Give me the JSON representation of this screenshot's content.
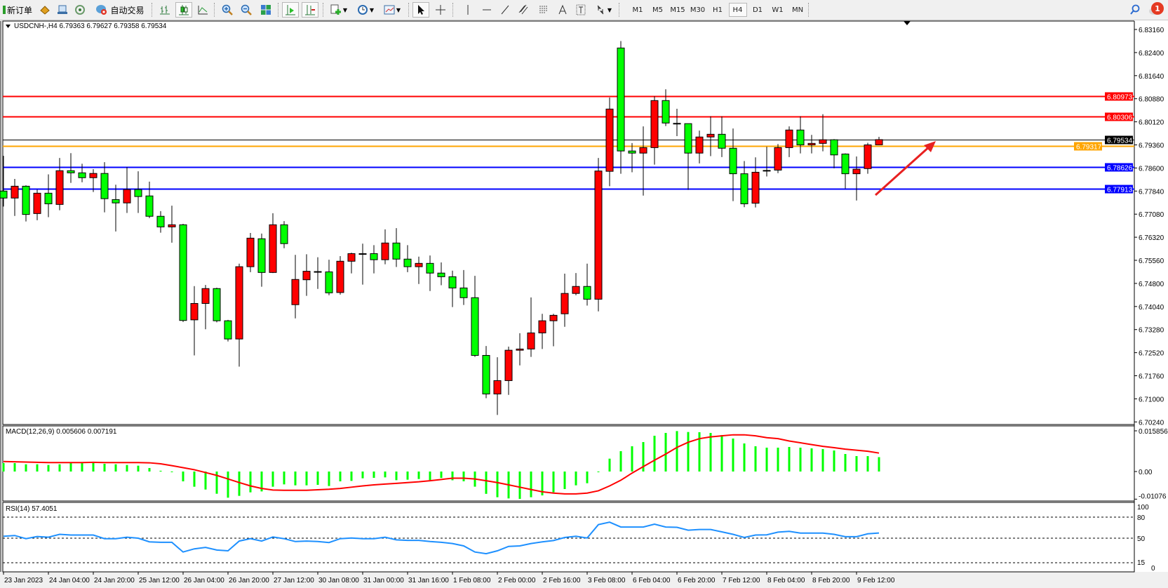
{
  "toolbar": {
    "new_order_label": "新订单",
    "auto_trading_label": "自动交易",
    "timeframes": [
      "M1",
      "M5",
      "M15",
      "M30",
      "H1",
      "H4",
      "D1",
      "W1",
      "MN"
    ],
    "active_timeframe": "H4",
    "notification_count": "1",
    "icons": [
      "new-order-icon",
      "metaeditor-icon",
      "terminal-icon",
      "signals-icon",
      "auto-trading-icon",
      "bar-chart-icon",
      "candlestick-icon",
      "line-chart-icon",
      "zoom-in-icon",
      "zoom-out-icon",
      "tile-windows-icon",
      "auto-scroll-icon",
      "chart-shift-icon",
      "new-chart-icon",
      "periods-icon",
      "templates-icon",
      "cursor-icon",
      "crosshair-icon",
      "vertical-line-icon",
      "horizontal-line-icon",
      "trendline-icon",
      "equidistant-channel-icon",
      "fibonacci-icon",
      "text-icon",
      "text-label-icon",
      "arrows-icon",
      "search-icon",
      "notification-icon"
    ]
  },
  "chart_data": {
    "type": "candlestick",
    "title": "USDCNH-,H4  6.79363 6.79627 6.79358 6.79534",
    "symbol": "USDCNH-",
    "timeframe": "H4",
    "header_ohlc": {
      "open": "6.79363",
      "high": "6.79627",
      "low": "6.79358",
      "close": "6.79534"
    },
    "ylim": [
      6.7024,
      6.8316
    ],
    "price_ticks": [
      "6.83160",
      "6.82400",
      "6.81640",
      "6.80880",
      "6.80120",
      "6.79360",
      "6.78600",
      "6.77840",
      "6.77080",
      "6.76320",
      "6.75560",
      "6.74800",
      "6.74040",
      "6.73280",
      "6.72520",
      "6.71760",
      "6.71000",
      "6.70240"
    ],
    "time_labels": [
      "23 Jan 2023",
      "24 Jan 04:00",
      "24 Jan 20:00",
      "25 Jan 12:00",
      "26 Jan 04:00",
      "26 Jan 20:00",
      "27 Jan 12:00",
      "30 Jan 08:00",
      "31 Jan 00:00",
      "31 Jan 16:00",
      "1 Feb 08:00",
      "2 Feb 00:00",
      "2 Feb 16:00",
      "3 Feb 08:00",
      "6 Feb 04:00",
      "6 Feb 20:00",
      "7 Feb 12:00",
      "8 Feb 04:00",
      "8 Feb 20:00",
      "9 Feb 12:00"
    ],
    "time_label_every_n_bars": 4,
    "up_color": "#ff0000",
    "down_color": "#00ff00",
    "ohlc": [
      [
        6.7784,
        6.79,
        6.7733,
        6.7761
      ],
      [
        6.7761,
        6.7824,
        6.7702,
        6.78
      ],
      [
        6.78,
        6.7803,
        6.7684,
        6.7707
      ],
      [
        6.771,
        6.7789,
        6.7688,
        6.7777
      ],
      [
        6.7777,
        6.7839,
        6.7698,
        6.7742
      ],
      [
        6.774,
        6.7893,
        6.7721,
        6.7851
      ],
      [
        6.7851,
        6.7909,
        6.7811,
        6.7844
      ],
      [
        6.7844,
        6.7874,
        6.7813,
        6.7828
      ],
      [
        6.7828,
        6.7856,
        6.7781,
        6.7842
      ],
      [
        6.7842,
        6.7879,
        6.7714,
        6.7759
      ],
      [
        6.7756,
        6.7805,
        6.7651,
        6.7745
      ],
      [
        6.7745,
        6.7863,
        6.7712,
        6.7789
      ],
      [
        6.7789,
        6.7849,
        6.7712,
        6.7766
      ],
      [
        6.7768,
        6.7815,
        6.7695,
        6.7701
      ],
      [
        6.7701,
        6.7718,
        6.7647,
        6.7666
      ],
      [
        6.7666,
        6.7736,
        6.7614,
        6.7673
      ],
      [
        6.7673,
        6.7676,
        6.7353,
        6.7358
      ],
      [
        6.736,
        6.7471,
        6.7243,
        6.7414
      ],
      [
        6.7414,
        6.7475,
        6.7329,
        6.7463
      ],
      [
        6.7463,
        6.7466,
        6.7352,
        6.7357
      ],
      [
        6.7357,
        6.736,
        6.7289,
        6.7297
      ],
      [
        6.7297,
        6.7545,
        6.7206,
        6.7535
      ],
      [
        6.7535,
        6.7646,
        6.7517,
        6.7629
      ],
      [
        6.7627,
        6.7644,
        6.7469,
        6.7516
      ],
      [
        6.7516,
        6.7711,
        6.7514,
        6.7673
      ],
      [
        6.7673,
        6.7685,
        6.7596,
        6.7611
      ],
      [
        6.741,
        6.7574,
        6.7365,
        6.7493
      ],
      [
        6.7492,
        6.7576,
        6.7439,
        6.752
      ],
      [
        6.7519,
        6.7566,
        6.7462,
        6.7519
      ],
      [
        6.7518,
        6.7558,
        6.7441,
        6.7449
      ],
      [
        6.745,
        6.757,
        6.7443,
        6.7553
      ],
      [
        6.7553,
        6.7581,
        6.7513,
        6.7578
      ],
      [
        6.7578,
        6.7611,
        6.7476,
        6.7578
      ],
      [
        6.7578,
        6.7606,
        6.7513,
        6.7558
      ],
      [
        6.7558,
        6.7658,
        6.7543,
        6.7613
      ],
      [
        6.7613,
        6.7662,
        6.7534,
        6.756
      ],
      [
        6.756,
        6.7606,
        6.7517,
        6.7535
      ],
      [
        6.7535,
        6.7568,
        6.7478,
        6.7546
      ],
      [
        6.7546,
        6.7572,
        6.7455,
        6.7514
      ],
      [
        6.7514,
        6.7549,
        6.7474,
        6.7502
      ],
      [
        6.7502,
        6.7522,
        6.7402,
        6.7465
      ],
      [
        6.7465,
        6.7524,
        6.7409,
        6.7433
      ],
      [
        6.7433,
        6.7505,
        6.7238,
        6.7243
      ],
      [
        6.7243,
        6.7274,
        6.7102,
        6.7116
      ],
      [
        6.7116,
        6.7237,
        6.7047,
        6.716
      ],
      [
        6.716,
        6.7272,
        6.7113,
        6.726
      ],
      [
        6.726,
        6.7316,
        6.721,
        6.7264
      ],
      [
        6.7264,
        6.7434,
        6.7238,
        6.7317
      ],
      [
        6.7317,
        6.738,
        6.7264,
        6.7357
      ],
      [
        6.7357,
        6.738,
        6.7273,
        6.7375
      ],
      [
        6.738,
        6.7512,
        6.7337,
        6.7447
      ],
      [
        6.7447,
        6.7514,
        6.7441,
        6.747
      ],
      [
        6.747,
        6.7545,
        6.7407,
        6.7428
      ],
      [
        6.7428,
        6.7893,
        6.7388,
        6.785
      ],
      [
        6.7849,
        6.8092,
        6.78,
        6.8054
      ],
      [
        6.8255,
        6.8278,
        6.7841,
        6.7916
      ],
      [
        6.7916,
        6.7942,
        6.7846,
        6.7909
      ],
      [
        6.7909,
        6.7997,
        6.7769,
        6.7927
      ],
      [
        6.7927,
        6.8096,
        6.7871,
        6.8082
      ],
      [
        6.8082,
        6.8119,
        6.7998,
        6.8008
      ],
      [
        6.8007,
        6.8055,
        6.7965,
        6.8007
      ],
      [
        6.8006,
        6.8006,
        6.7788,
        6.7909
      ],
      [
        6.7909,
        6.7983,
        6.7875,
        6.7962
      ],
      [
        6.7962,
        6.803,
        6.7899,
        6.7971
      ],
      [
        6.7971,
        6.803,
        6.7896,
        6.7925
      ],
      [
        6.7925,
        6.799,
        6.7751,
        6.7841
      ],
      [
        6.7841,
        6.7883,
        6.7731,
        6.7742
      ],
      [
        6.7744,
        6.7895,
        6.773,
        6.7846
      ],
      [
        6.7852,
        6.793,
        6.7832,
        6.7852
      ],
      [
        6.7853,
        6.7939,
        6.7843,
        6.7927
      ],
      [
        6.7927,
        6.7997,
        6.7896,
        6.7985
      ],
      [
        6.7985,
        6.803,
        6.7908,
        6.7936
      ],
      [
        6.7936,
        6.7969,
        6.7908,
        6.7941
      ],
      [
        6.7941,
        6.8037,
        6.7915,
        6.7953
      ],
      [
        6.7953,
        6.7955,
        6.7859,
        6.7903
      ],
      [
        6.7906,
        6.7908,
        6.7792,
        6.7841
      ],
      [
        6.7841,
        6.7898,
        6.7753,
        6.7856
      ],
      [
        6.7858,
        6.7943,
        6.7841,
        6.7936
      ],
      [
        6.79363,
        6.79627,
        6.79358,
        6.79534
      ]
    ],
    "horizontal_levels": [
      {
        "price": "6.80973",
        "color": "#ff0000"
      },
      {
        "price": "6.80306",
        "color": "#ff0000"
      },
      {
        "price": "6.79534",
        "color": "#000000"
      },
      {
        "price": "6.79317",
        "color": "#ffa500"
      },
      {
        "price": "6.78626",
        "color": "#0000ff"
      },
      {
        "price": "6.77913",
        "color": "#0000ff"
      }
    ],
    "annotation_arrow": {
      "color": "#ff0000",
      "direction": "up-right"
    },
    "macd": {
      "label": "MACD(12,26,9) 0.005606 0.007191",
      "ylim": [
        -0.01076,
        0.015856
      ],
      "ticks": [
        "0.015856",
        "0.00",
        "-0.01076"
      ],
      "hist_color": "#00ff00",
      "signal_color": "#ff0000",
      "histogram": [
        0.00328,
        0.00328,
        0.00282,
        0.00282,
        0.00255,
        0.00282,
        0.00346,
        0.00346,
        0.00374,
        0.00301,
        0.00282,
        0.00255,
        0.00228,
        0.00137,
        0.0003,
        -0.0001,
        -0.00383,
        -0.00592,
        -0.00702,
        -0.00866,
        -0.0102,
        -0.00948,
        -0.00811,
        -0.00775,
        -0.00592,
        -0.00501,
        -0.00538,
        -0.00538,
        -0.0052,
        -0.00565,
        -0.00383,
        -0.00365,
        -0.00264,
        -0.00246,
        -0.00228,
        -0.00337,
        -0.00319,
        -0.00292,
        -0.00337,
        -0.0025,
        -0.0034,
        -0.0038,
        -0.0059,
        -0.0087,
        -0.01002,
        -0.01048,
        -0.01066,
        -0.01002,
        -0.0093,
        -0.00811,
        -0.00683,
        -0.00538,
        -0.00456,
        -0.0002,
        0.00501,
        0.00793,
        0.00984,
        0.01148,
        0.01394,
        0.01504,
        0.01576,
        0.0154,
        0.01531,
        0.01504,
        0.01422,
        0.01285,
        0.01094,
        0.00984,
        0.0093,
        0.0093,
        0.00957,
        0.0093,
        0.00902,
        0.00875,
        0.0082,
        0.00683,
        0.00601,
        0.00601,
        0.005606
      ],
      "signal": [
        0.0039,
        0.0038,
        0.0037,
        0.0036,
        0.0035,
        0.0035,
        0.0035,
        0.0035,
        0.0036,
        0.0035,
        0.0035,
        0.0035,
        0.0035,
        0.0034,
        0.003,
        0.0023,
        0.0015,
        0.0007,
        -0.0004,
        -0.0015,
        -0.0029,
        -0.0043,
        -0.0056,
        -0.0066,
        -0.0072,
        -0.0073,
        -0.0073,
        -0.0073,
        -0.0071,
        -0.0069,
        -0.0066,
        -0.0061,
        -0.0056,
        -0.0052,
        -0.0049,
        -0.0046,
        -0.0043,
        -0.004,
        -0.0036,
        -0.0031,
        -0.0026,
        -0.0026,
        -0.0029,
        -0.0036,
        -0.0043,
        -0.0052,
        -0.0061,
        -0.007,
        -0.0079,
        -0.0084,
        -0.0087,
        -0.0087,
        -0.0084,
        -0.0075,
        -0.0056,
        -0.0034,
        -0.0006,
        0.0019,
        0.0044,
        0.0068,
        0.0094,
        0.0114,
        0.0128,
        0.0135,
        0.0139,
        0.0143,
        0.0143,
        0.0139,
        0.0132,
        0.0128,
        0.0119,
        0.0112,
        0.0105,
        0.0098,
        0.0093,
        0.0087,
        0.0083,
        0.0079,
        0.007191
      ]
    },
    "rsi": {
      "label": "RSI(14) 57.4051",
      "ylim": [
        0,
        100
      ],
      "ticks": [
        "100",
        "80",
        "50",
        "15",
        "0"
      ],
      "levels": [
        80,
        50,
        15
      ],
      "color": "#1e90ff",
      "values": [
        52.8,
        53.8,
        49.3,
        52.4,
        51.4,
        55.5,
        54.5,
        54.5,
        54.5,
        49.3,
        49.3,
        51.4,
        50,
        44.8,
        44.1,
        44.1,
        30.3,
        34.8,
        36.9,
        33.1,
        32,
        45.9,
        49.3,
        45.9,
        51.7,
        49.3,
        45.2,
        45.9,
        45.2,
        43.8,
        49.3,
        50.3,
        49.3,
        49.3,
        51.4,
        47.6,
        46.9,
        46.9,
        45.2,
        44.1,
        42.4,
        39,
        30.3,
        27.9,
        32,
        38.3,
        39,
        42.4,
        44.8,
        46.6,
        51,
        52.8,
        50.3,
        69.3,
        72.8,
        65.9,
        65.9,
        65.9,
        70,
        65.9,
        65.5,
        61.4,
        62.4,
        62.4,
        59,
        55.5,
        51,
        54.5,
        54.8,
        58.6,
        59.7,
        57.2,
        57.2,
        57.2,
        55.5,
        52.1,
        52.1,
        56.2,
        57.4051
      ]
    }
  }
}
